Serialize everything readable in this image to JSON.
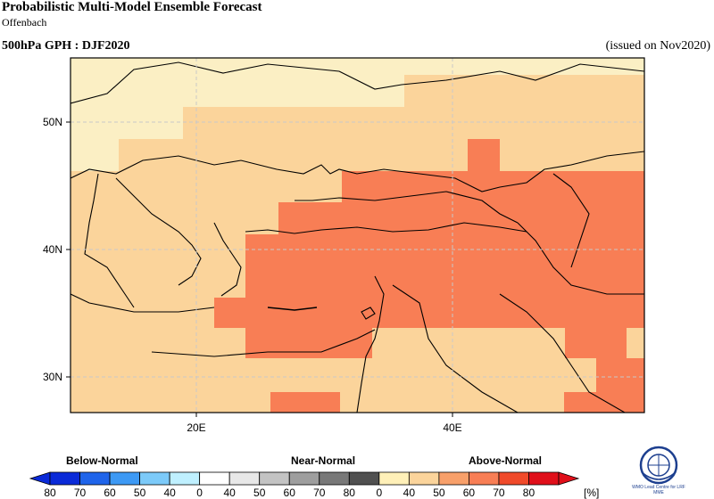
{
  "header": {
    "title": "Probabilistic Multi-Model Ensemble Forecast",
    "subtitle": "Offenbach",
    "variable": "500hPa GPH : DJF2020",
    "issued": "(issued on Nov2020)"
  },
  "map": {
    "lon_range": [
      10,
      55
    ],
    "lat_range": [
      27,
      55
    ],
    "lat_ticks": [
      "50N",
      "40N",
      "30N"
    ],
    "lon_ticks": [
      "20E",
      "40E"
    ],
    "colors": {
      "near_normal_40_50": "#fbefc4",
      "above_40_50": "#fbd49b",
      "above_60_70": "#f87e55",
      "coast": "#000000",
      "grid": "#c8c8c8"
    }
  },
  "legend": {
    "categories": [
      "Below-Normal",
      "Near-Normal",
      "Above-Normal"
    ],
    "ticks": [
      "80",
      "70",
      "60",
      "50",
      "40",
      "0",
      "40",
      "50",
      "60",
      "70",
      "80",
      "0",
      "40",
      "50",
      "60",
      "70",
      "80"
    ],
    "unit": "[%]",
    "colors": [
      "#0a2ad8",
      "#1f64ea",
      "#3d99f4",
      "#7ccaf9",
      "#bff0ff",
      "#ffffff",
      "#e8e8e8",
      "#c3c3c3",
      "#9e9e9e",
      "#787878",
      "#505050",
      "#fff0b8",
      "#fbd49b",
      "#f8a06a",
      "#f87e55",
      "#f04a2a",
      "#e00f1a"
    ]
  },
  "logo": {
    "caption": "WMO Lead Centre for LRF MME"
  }
}
